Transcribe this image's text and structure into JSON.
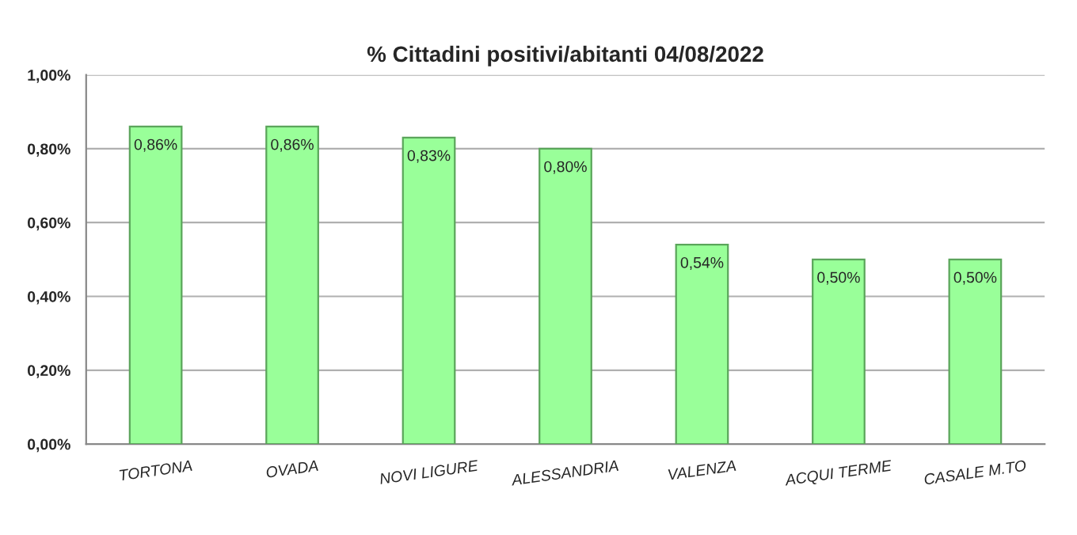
{
  "chart_data": {
    "type": "bar",
    "title": "% Cittadini positivi/abitanti 04/08/2022",
    "categories": [
      "TORTONA",
      "OVADA",
      "NOVI LIGURE",
      "ALESSANDRIA",
      "VALENZA",
      "ACQUI TERME",
      "CASALE M.TO"
    ],
    "values": [
      0.86,
      0.86,
      0.83,
      0.8,
      0.54,
      0.5,
      0.5
    ],
    "value_labels": [
      "0,86%",
      "0,86%",
      "0,83%",
      "0,80%",
      "0,54%",
      "0,50%",
      "0,50%"
    ],
    "color": "#99ff99",
    "ylim": [
      0,
      1
    ],
    "yticks": [
      {
        "value": 0,
        "label": "0,00%"
      },
      {
        "value": 0.2,
        "label": "0,20%"
      },
      {
        "value": 0.4,
        "label": "0,40%"
      },
      {
        "value": 0.6,
        "label": "0,60%"
      },
      {
        "value": 0.8,
        "label": "0,80%"
      },
      {
        "value": 1,
        "label": "1,00%"
      }
    ],
    "grid": "y",
    "legend": false
  }
}
